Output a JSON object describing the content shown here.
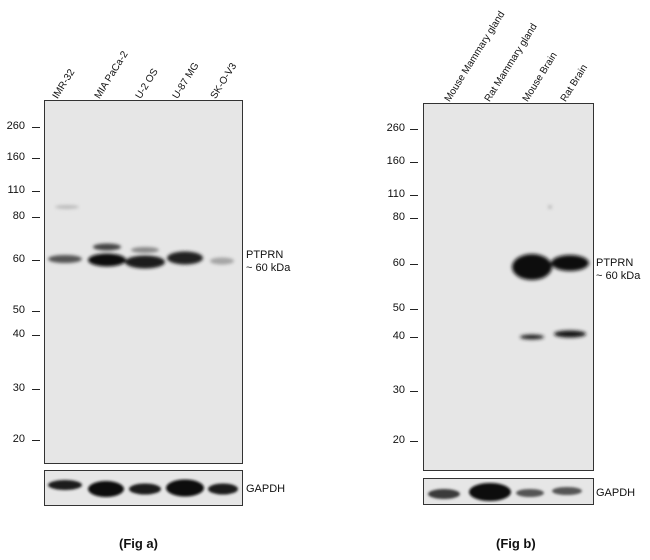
{
  "panel_a": {
    "lanes": [
      "IMR-32",
      "MIA PaCa-2",
      "U-2 OS",
      "U-87 MG",
      "SK-O-V3"
    ],
    "markers": [
      "260",
      "160",
      "110",
      "80",
      "60",
      "50",
      "40",
      "30",
      "20"
    ],
    "target_label": "PTPRN",
    "target_size": "~ 60 kDa",
    "loading_control": "GAPDH",
    "caption": "(Fig a)"
  },
  "panel_b": {
    "lanes": [
      "Mouse Mammary gland",
      "Rat Mammary gland",
      "Mouse Brain",
      "Rat Brain"
    ],
    "markers": [
      "260",
      "160",
      "110",
      "80",
      "60",
      "50",
      "40",
      "30",
      "20"
    ],
    "target_label": "PTPRN",
    "target_size": "~ 60 kDa",
    "loading_control": "GAPDH",
    "caption": "(Fig b)"
  }
}
